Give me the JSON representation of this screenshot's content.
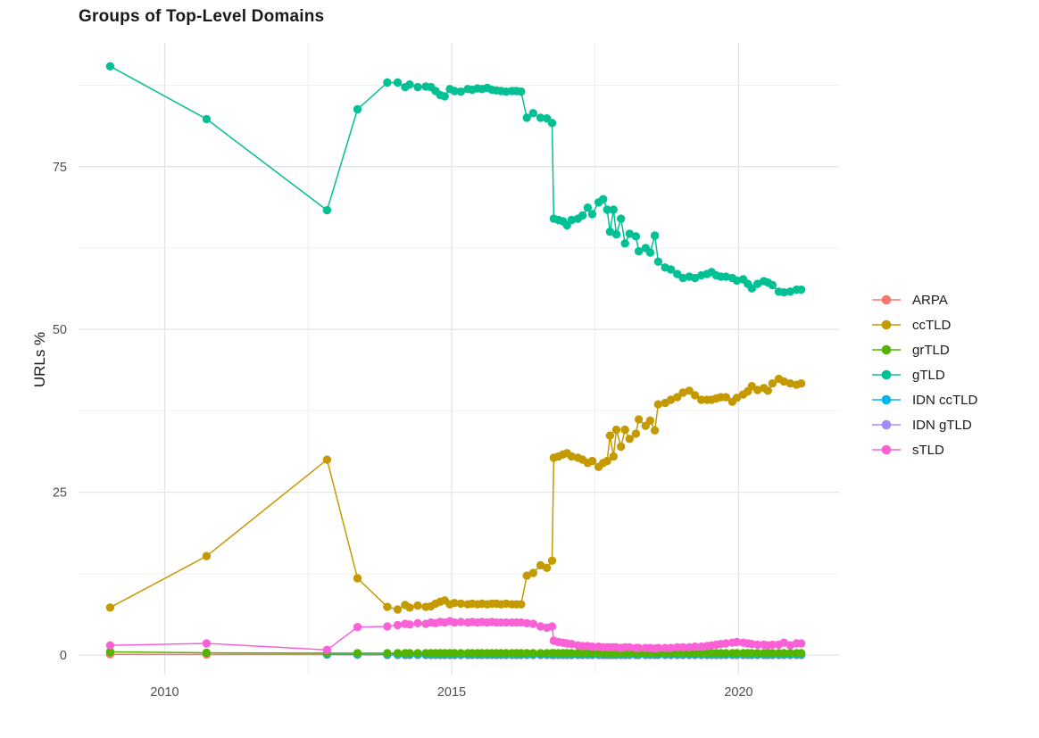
{
  "chart_data": {
    "type": "line",
    "title": "Groups of Top-Level Domains",
    "xlabel": "",
    "ylabel": "URLs %",
    "legend_position": "right",
    "grid": true,
    "x_ticks": [
      2010,
      2015,
      2020
    ],
    "x_minor_gridlines": [
      2012.5,
      2017.5
    ],
    "y_ticks": [
      0,
      25,
      50,
      75
    ],
    "y_minor_gridlines": [
      12.5,
      37.5,
      62.5,
      87.5
    ],
    "x_range": [
      2008.5,
      2021.75
    ],
    "y_range": [
      -3,
      94
    ],
    "dense_x": [
      2013.36,
      2013.88,
      2014.06,
      2014.19,
      2014.27,
      2014.41,
      2014.55,
      2014.64,
      2014.72,
      2014.8,
      2014.88,
      2014.97,
      2015.05,
      2015.16,
      2015.28,
      2015.36,
      2015.45,
      2015.53,
      2015.62,
      2015.7,
      2015.78,
      2015.86,
      2015.95,
      2016.05,
      2016.13,
      2016.21,
      2016.31,
      2016.42,
      2016.55,
      2016.66,
      2016.75,
      2016.78,
      2016.86,
      2016.94,
      2017.01,
      2017.09,
      2017.2,
      2017.28,
      2017.37,
      2017.45,
      2017.56,
      2017.64,
      2017.71,
      2017.76,
      2017.82,
      2017.87,
      2017.95,
      2018.02,
      2018.1,
      2018.21,
      2018.26,
      2018.38,
      2018.46,
      2018.54,
      2018.6,
      2018.72,
      2018.82,
      2018.93,
      2019.03,
      2019.14,
      2019.24,
      2019.35,
      2019.45,
      2019.53,
      2019.61,
      2019.69,
      2019.78,
      2019.89,
      2019.97,
      2020.08,
      2020.16,
      2020.23,
      2020.33,
      2020.44,
      2020.51,
      2020.59,
      2020.7,
      2020.79,
      2020.9,
      2021.01,
      2021.09
    ],
    "series": [
      {
        "name": "ARPA",
        "color": "#F8766D",
        "z": 0,
        "sparse_points": [
          [
            2009.05,
            0.12
          ],
          [
            2010.73,
            0.1
          ],
          [
            2012.83,
            0.1
          ]
        ],
        "dense_value": 0.05
      },
      {
        "name": "ccTLD",
        "color": "#C49A00",
        "z": 4,
        "sparse_points": [
          [
            2009.05,
            7.3
          ],
          [
            2010.73,
            15.2
          ],
          [
            2012.83,
            30.0
          ]
        ],
        "dense_values": [
          11.8,
          7.4,
          7.0,
          7.7,
          7.3,
          7.6,
          7.4,
          7.5,
          7.9,
          8.2,
          8.4,
          7.8,
          8.0,
          7.9,
          7.8,
          7.9,
          7.8,
          7.9,
          7.8,
          7.9,
          7.9,
          7.8,
          7.9,
          7.8,
          7.8,
          7.8,
          12.2,
          12.6,
          13.8,
          13.4,
          14.5,
          30.3,
          30.5,
          30.8,
          31.0,
          30.5,
          30.3,
          30.0,
          29.5,
          29.8,
          28.9,
          29.5,
          29.8,
          33.7,
          30.5,
          34.6,
          32.0,
          34.6,
          33.2,
          34.0,
          36.2,
          35.2,
          36.0,
          34.5,
          38.5,
          38.7,
          39.2,
          39.6,
          40.3,
          40.6,
          39.9,
          39.2,
          39.2,
          39.2,
          39.4,
          39.6,
          39.6,
          38.9,
          39.5,
          40.0,
          40.5,
          41.3,
          40.7,
          41.0,
          40.6,
          41.7,
          42.4,
          42.0,
          41.7,
          41.5,
          41.7
        ]
      },
      {
        "name": "grTLD",
        "color": "#53B400",
        "z": 3,
        "sparse_points": [
          [
            2009.05,
            0.5
          ],
          [
            2010.73,
            0.35
          ],
          [
            2012.83,
            0.3
          ]
        ],
        "dense_value": 0.3
      },
      {
        "name": "gTLD",
        "color": "#00C094",
        "z": 5,
        "sparse_points": [
          [
            2009.05,
            90.4
          ],
          [
            2010.73,
            82.3
          ],
          [
            2012.83,
            68.3
          ]
        ],
        "dense_values": [
          83.8,
          87.9,
          87.9,
          87.2,
          87.6,
          87.2,
          87.3,
          87.2,
          86.6,
          86.0,
          85.8,
          86.9,
          86.6,
          86.5,
          86.9,
          86.8,
          87.0,
          86.9,
          87.1,
          86.8,
          86.7,
          86.6,
          86.5,
          86.6,
          86.6,
          86.5,
          82.5,
          83.2,
          82.5,
          82.4,
          81.7,
          67.0,
          66.8,
          66.6,
          66.0,
          66.8,
          67.0,
          67.5,
          68.7,
          67.7,
          69.5,
          70.0,
          68.4,
          65.0,
          68.4,
          64.6,
          67.0,
          63.2,
          64.7,
          64.3,
          62.0,
          62.5,
          61.8,
          64.4,
          60.4,
          59.5,
          59.2,
          58.5,
          57.9,
          58.1,
          57.9,
          58.3,
          58.5,
          58.8,
          58.3,
          58.1,
          58.1,
          57.9,
          57.5,
          57.7,
          57.0,
          56.3,
          57.0,
          57.4,
          57.2,
          56.8,
          55.8,
          55.7,
          55.8,
          56.1,
          56.1
        ]
      },
      {
        "name": "IDN ccTLD",
        "color": "#00B6EB",
        "z": 2,
        "sparse_points": [
          [
            2012.83,
            0.1
          ]
        ],
        "dense_value": 0.1
      },
      {
        "name": "IDN gTLD",
        "color": "#A58AFF",
        "z": 1,
        "sparse_points": [],
        "dense_from": 2013.88,
        "dense_value": 0.0
      },
      {
        "name": "sTLD",
        "color": "#FB61D7",
        "z": 6,
        "sparse_points": [
          [
            2009.05,
            1.5
          ],
          [
            2010.73,
            1.8
          ],
          [
            2012.83,
            0.8
          ]
        ],
        "dense_values": [
          4.3,
          4.4,
          4.6,
          4.8,
          4.7,
          4.9,
          4.8,
          5.0,
          4.9,
          5.1,
          5.0,
          5.2,
          5.0,
          5.1,
          5.0,
          5.1,
          5.0,
          5.1,
          5.0,
          5.1,
          5.0,
          5.0,
          5.0,
          5.0,
          5.0,
          5.0,
          4.9,
          4.8,
          4.4,
          4.2,
          4.4,
          2.2,
          2.0,
          1.9,
          1.8,
          1.7,
          1.5,
          1.4,
          1.4,
          1.3,
          1.3,
          1.2,
          1.2,
          1.2,
          1.2,
          1.2,
          1.1,
          1.2,
          1.2,
          1.1,
          1.1,
          1.1,
          1.1,
          1.0,
          1.1,
          1.1,
          1.1,
          1.2,
          1.2,
          1.2,
          1.3,
          1.3,
          1.4,
          1.5,
          1.6,
          1.7,
          1.8,
          1.9,
          2.0,
          1.9,
          1.8,
          1.7,
          1.6,
          1.6,
          1.5,
          1.6,
          1.6,
          1.9,
          1.5,
          1.8,
          1.8
        ]
      }
    ],
    "style": {
      "grid_major_color": "#e4e4e4",
      "grid_minor_color": "#f0f0f0",
      "tick_label_color": "#4d4d4d",
      "text_color": "#1a1a1a",
      "background": "#ffffff"
    }
  }
}
